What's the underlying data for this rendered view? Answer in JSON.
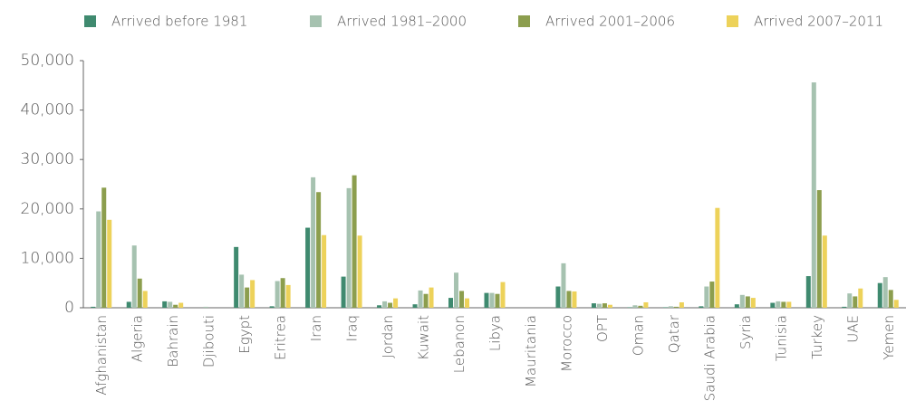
{
  "chart_data": {
    "type": "bar",
    "categories": [
      "Afghanistan",
      "Algeria",
      "Bahrain",
      "Djibouti",
      "Egypt",
      "Eritrea",
      "Iran",
      "Iraq",
      "Jordan",
      "Kuwait",
      "Lebanon",
      "Libya",
      "Mauritania",
      "Morocco",
      "OPT",
      "Oman",
      "Qatar",
      "Saudi Arabia",
      "Syria",
      "Tunisia",
      "Turkey",
      "UAE",
      "Yemen"
    ],
    "series": [
      {
        "name": "Arrived before 1981",
        "color": "#3f8a6f",
        "values": [
          200,
          1200,
          1300,
          0,
          12300,
          300,
          16200,
          6300,
          500,
          700,
          2000,
          3000,
          0,
          4300,
          900,
          100,
          100,
          300,
          700,
          1000,
          6400,
          200,
          5000
        ]
      },
      {
        "name": "Arrived 1981–2000",
        "color": "#a6c2b0",
        "values": [
          19500,
          12600,
          1200,
          200,
          6700,
          5400,
          26400,
          24200,
          1300,
          3500,
          7100,
          3000,
          0,
          9000,
          800,
          500,
          300,
          4300,
          2600,
          1300,
          45600,
          2900,
          6200
        ]
      },
      {
        "name": "Arrived 2001–2006",
        "color": "#8c9e4e",
        "values": [
          24300,
          5900,
          600,
          0,
          4100,
          6000,
          23400,
          26800,
          1000,
          2800,
          3400,
          2800,
          0,
          3400,
          900,
          400,
          200,
          5300,
          2300,
          1200,
          23800,
          2300,
          3600
        ]
      },
      {
        "name": "Arrived 2007–2011",
        "color": "#edd25a",
        "values": [
          17800,
          3400,
          1000,
          0,
          5600,
          4600,
          14700,
          14600,
          1900,
          4100,
          1900,
          5200,
          0,
          3300,
          600,
          1100,
          1100,
          20200,
          2000,
          1200,
          14600,
          3900,
          1600
        ]
      }
    ],
    "ylim": [
      0,
      50000
    ],
    "yticks": [
      0,
      {
        "value": 10000,
        "label": "10,000"
      },
      {
        "value": 20000,
        "label": "20,000"
      },
      {
        "value": 30000,
        "label": "30,000"
      },
      {
        "value": 40000,
        "label": "40,000"
      },
      {
        "value": 50000,
        "label": "50,000"
      }
    ],
    "grid": false,
    "legend": "top"
  }
}
